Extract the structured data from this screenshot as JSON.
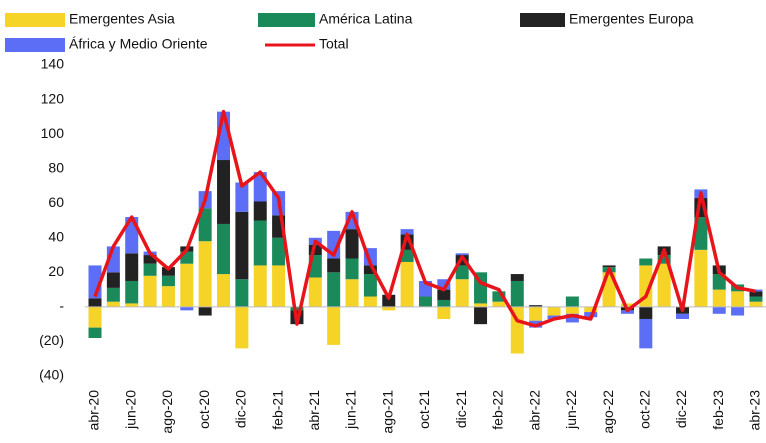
{
  "chart_data": {
    "type": "bar",
    "stacked": true,
    "legend": "top",
    "categories": [
      "abr-20",
      null,
      "jun-20",
      null,
      "ago-20",
      null,
      "oct-20",
      null,
      "dic-20",
      null,
      "feb-21",
      null,
      "abr-21",
      null,
      "jun-21",
      null,
      "ago-21",
      null,
      "oct-21",
      null,
      "dic-21",
      null,
      "feb-22",
      null,
      "abr-22",
      null,
      "jun-22",
      null,
      "ago-22",
      null,
      "oct-22",
      null,
      "dic-22",
      null,
      "feb-23",
      null,
      "abr-23"
    ],
    "series": [
      {
        "name": "Emergentes Asia",
        "color": "#f5d327",
        "values": [
          -12,
          3,
          2,
          18,
          12,
          25,
          38,
          19,
          -24,
          24,
          24,
          0,
          17,
          -22,
          16,
          6,
          -2,
          26,
          0,
          -7,
          16,
          2,
          3,
          -27,
          -8,
          -5,
          -4,
          -3,
          20,
          2,
          24,
          25,
          0,
          33,
          10,
          9,
          3
        ]
      },
      {
        "name": "América Latina",
        "color": "#1a8a5a",
        "values": [
          -6,
          8,
          13,
          7,
          6,
          7,
          19,
          29,
          16,
          26,
          16,
          -2,
          13,
          20,
          12,
          13,
          0,
          7,
          6,
          4,
          8,
          18,
          6,
          15,
          0,
          0,
          6,
          0,
          3,
          0,
          4,
          5,
          0,
          19,
          9,
          4,
          3
        ]
      },
      {
        "name": "Emergentes Europa",
        "color": "#222222",
        "values": [
          5,
          9,
          16,
          5,
          5,
          3,
          -5,
          37,
          39,
          11,
          13,
          -8,
          6,
          8,
          17,
          5,
          7,
          9,
          0,
          6,
          6,
          -10,
          0,
          4,
          1,
          0,
          0,
          0,
          1,
          -2,
          -7,
          5,
          -4,
          11,
          5,
          0,
          3
        ]
      },
      {
        "name": "África y Medio Oriente",
        "color": "#5b6ef5",
        "values": [
          19,
          15,
          21,
          2,
          0,
          -2,
          10,
          28,
          17,
          17,
          14,
          0,
          4,
          16,
          10,
          10,
          0,
          3,
          9,
          6,
          1,
          0,
          0,
          0,
          -4,
          -2,
          -5,
          -3,
          0,
          -2,
          -17,
          0,
          -3,
          5,
          -4,
          -5,
          1
        ]
      },
      {
        "name": "Total",
        "type": "line",
        "color": "#e8141b",
        "values": [
          6,
          35,
          52,
          31,
          22,
          33,
          62,
          113,
          70,
          78,
          63,
          -10,
          38,
          30,
          55,
          25,
          5,
          42,
          14,
          10,
          29,
          14,
          10,
          -8,
          -11,
          -7,
          -5,
          -7,
          22,
          -2,
          6,
          33,
          -2,
          66,
          20,
          11,
          9
        ]
      }
    ],
    "ylim": [
      -40,
      140
    ],
    "yticks": [
      140,
      120,
      100,
      80,
      60,
      40,
      20,
      {
        "value": 0,
        "label": "-"
      },
      {
        "value": -20,
        "label": "(20)"
      },
      {
        "value": -40,
        "label": "(40)"
      }
    ]
  }
}
